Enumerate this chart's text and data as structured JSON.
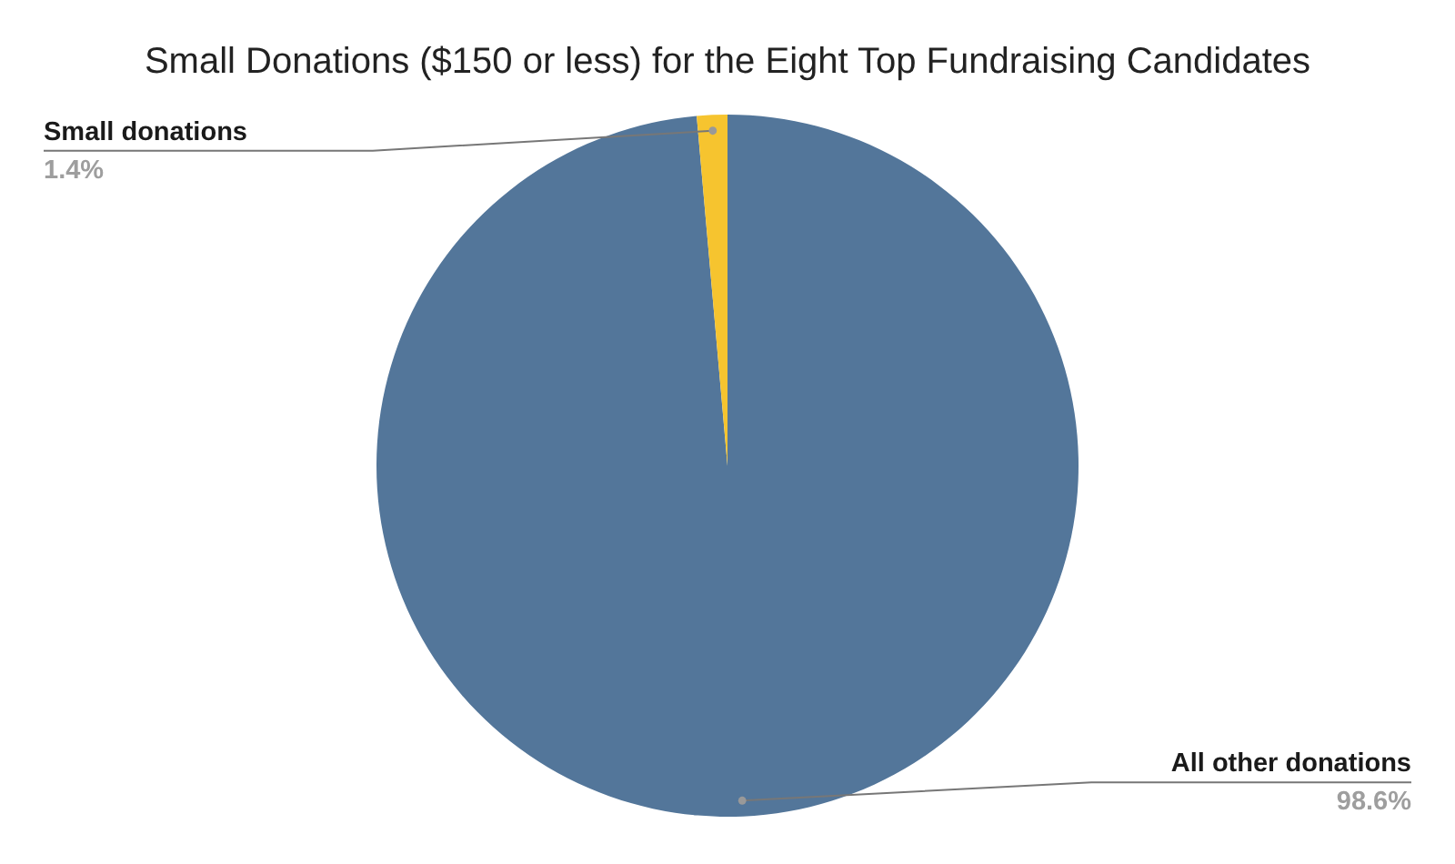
{
  "chart_data": {
    "type": "pie",
    "title": "Small Donations ($150 or less) for the Eight Top Fundraising Candidates",
    "categories": [
      "All other donations",
      "Small donations"
    ],
    "values": [
      98.6,
      1.4
    ],
    "colors": [
      "#53769a",
      "#f6c42f"
    ],
    "value_labels": [
      "98.6%",
      "1.4%"
    ]
  }
}
